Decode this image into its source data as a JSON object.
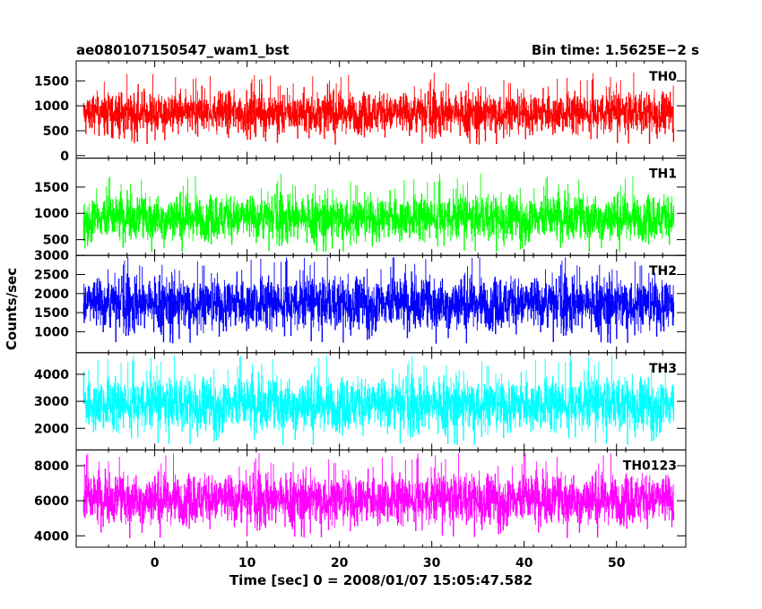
{
  "header": {
    "title_left": "ae080107150547_wam1_bst",
    "title_right": "Bin time: 1.5625E−2 s"
  },
  "axes": {
    "xlabel": "Time [sec] 0 = 2008/01/07 15:05:47.582",
    "ylabel": "Counts/sec"
  },
  "chart_data": {
    "type": "line",
    "subtype": "stacked-lightcurve-panels",
    "bin_time_s": 0.015625,
    "x_range": [
      -8.5,
      57.5
    ],
    "data_x_range": [
      -7.7,
      56.2
    ],
    "x_ticks": [
      0,
      10,
      20,
      30,
      40,
      50
    ],
    "x_tick_labels": [
      "0",
      "10",
      "20",
      "30",
      "40",
      "50"
    ],
    "panels": [
      {
        "label": "TH0",
        "color": "#ff0000",
        "ylim": [
          -50,
          1900
        ],
        "y_ticks": [
          0,
          500,
          1000,
          1500
        ],
        "mean": 860,
        "spread": 260,
        "min": 80,
        "max": 1850
      },
      {
        "label": "TH1",
        "color": "#00ff00",
        "ylim": [
          200,
          2050
        ],
        "y_ticks": [
          500,
          1000,
          1500
        ],
        "mean": 920,
        "spread": 270,
        "min": 280,
        "max": 1950
      },
      {
        "label": "TH2",
        "color": "#0000ff",
        "ylim": [
          450,
          3000
        ],
        "y_ticks": [
          1000,
          1500,
          2000,
          2500,
          3000
        ],
        "mean": 1750,
        "spread": 430,
        "min": 550,
        "max": 2950
      },
      {
        "label": "TH3",
        "color": "#00ffff",
        "ylim": [
          1200,
          4800
        ],
        "y_ticks": [
          2000,
          3000,
          4000
        ],
        "mean": 2900,
        "spread": 620,
        "min": 1400,
        "max": 4700
      },
      {
        "label": "TH0123",
        "color": "#ff00ff",
        "ylim": [
          3350,
          8900
        ],
        "y_ticks": [
          4000,
          6000,
          8000
        ],
        "mean": 6100,
        "spread": 900,
        "min": 3400,
        "max": 8700
      }
    ]
  }
}
